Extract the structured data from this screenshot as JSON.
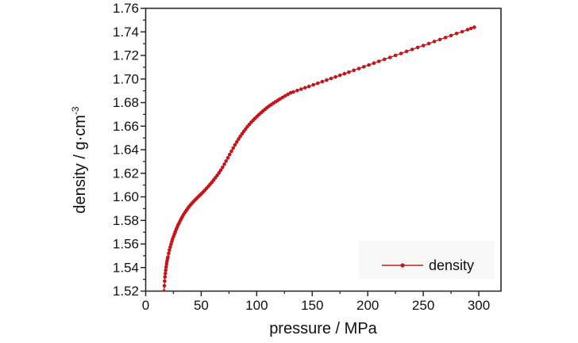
{
  "figure": {
    "background_color": "#ffffff",
    "axis_color": "#2a2a2a",
    "text_color": "#111111"
  },
  "chart_data": {
    "type": "scatter",
    "title": "",
    "xlabel": "pressure / MPa",
    "ylabel": "density / g·cm⁻³",
    "ylabel_base": "density / g·cm",
    "ylabel_sup": "-3",
    "xlim": [
      0,
      320
    ],
    "ylim": [
      1.52,
      1.76
    ],
    "grid": false,
    "x_major_ticks": [
      0,
      50,
      100,
      150,
      200,
      250,
      300
    ],
    "x_tick_labels": [
      "0",
      "50",
      "100",
      "150",
      "200",
      "250",
      "300"
    ],
    "x_minor_ticks": [
      25,
      75,
      125,
      175,
      225,
      275
    ],
    "y_major_ticks": [
      1.52,
      1.54,
      1.56,
      1.58,
      1.6,
      1.62,
      1.64,
      1.66,
      1.68,
      1.7,
      1.72,
      1.74,
      1.76
    ],
    "y_tick_labels": [
      "1.52",
      "1.54",
      "1.56",
      "1.58",
      "1.60",
      "1.62",
      "1.64",
      "1.66",
      "1.68",
      "1.70",
      "1.72",
      "1.74",
      "1.76"
    ],
    "y_minor_ticks": [
      1.53,
      1.55,
      1.57,
      1.59,
      1.61,
      1.63,
      1.65,
      1.67,
      1.69,
      1.71,
      1.73,
      1.75
    ],
    "legend": {
      "label": "density",
      "position": "lower right",
      "background_color": "#f8f8f8"
    },
    "series": [
      {
        "name": "density",
        "style": "line+marker",
        "marker": "filled-circle",
        "marker_color": "#c1161b",
        "line_color": "#b32420",
        "points": [
          [
            16.5,
            1.52
          ],
          [
            16.8,
            1.5245
          ],
          [
            17.1,
            1.5285
          ],
          [
            17.4,
            1.532
          ],
          [
            17.7,
            1.535
          ],
          [
            18.0,
            1.5378
          ],
          [
            18.4,
            1.5405
          ],
          [
            18.8,
            1.543
          ],
          [
            19.2,
            1.5452
          ],
          [
            19.6,
            1.5472
          ],
          [
            20.0,
            1.549
          ],
          [
            20.7,
            1.552
          ],
          [
            21.4,
            1.5548
          ],
          [
            22.1,
            1.5573
          ],
          [
            22.8,
            1.5597
          ],
          [
            23.5,
            1.562
          ],
          [
            24.2,
            1.5641
          ],
          [
            25.0,
            1.5662
          ],
          [
            25.8,
            1.5683
          ],
          [
            26.6,
            1.5703
          ],
          [
            27.4,
            1.5722
          ],
          [
            28.2,
            1.574
          ],
          [
            29.1,
            1.5759
          ],
          [
            30.0,
            1.5777
          ],
          [
            31.0,
            1.5796
          ],
          [
            32.0,
            1.5814
          ],
          [
            33.0,
            1.5831
          ],
          [
            34.2,
            1.585
          ],
          [
            35.4,
            1.5868
          ],
          [
            36.6,
            1.5885
          ],
          [
            37.8,
            1.5901
          ],
          [
            39.0,
            1.5916
          ],
          [
            40.3,
            1.5931
          ],
          [
            41.6,
            1.5945
          ],
          [
            43.0,
            1.5959
          ],
          [
            44.4,
            1.5973
          ],
          [
            45.8,
            1.5986
          ],
          [
            47.2,
            1.5999
          ],
          [
            48.6,
            1.6012
          ],
          [
            50.0,
            1.6025
          ],
          [
            51.6,
            1.604
          ],
          [
            53.2,
            1.6056
          ],
          [
            54.8,
            1.6072
          ],
          [
            56.4,
            1.6089
          ],
          [
            58.0,
            1.6106
          ],
          [
            59.6,
            1.6124
          ],
          [
            61.2,
            1.6143
          ],
          [
            62.8,
            1.6162
          ],
          [
            64.4,
            1.6182
          ],
          [
            66.0,
            1.6203
          ],
          [
            67.6,
            1.6226
          ],
          [
            69.2,
            1.625
          ],
          [
            70.8,
            1.6276
          ],
          [
            72.4,
            1.6303
          ],
          [
            74.0,
            1.6331
          ],
          [
            75.6,
            1.6359
          ],
          [
            77.2,
            1.6387
          ],
          [
            78.8,
            1.6414
          ],
          [
            80.4,
            1.6441
          ],
          [
            82.0,
            1.6466
          ],
          [
            83.6,
            1.649
          ],
          [
            85.2,
            1.6513
          ],
          [
            86.8,
            1.6535
          ],
          [
            88.4,
            1.6556
          ],
          [
            90.0,
            1.6576
          ],
          [
            91.7,
            1.6596
          ],
          [
            93.4,
            1.6615
          ],
          [
            95.1,
            1.6633
          ],
          [
            96.8,
            1.665
          ],
          [
            98.5,
            1.6666
          ],
          [
            100.2,
            1.6682
          ],
          [
            102.0,
            1.6698
          ],
          [
            103.8,
            1.6713
          ],
          [
            105.6,
            1.6728
          ],
          [
            107.4,
            1.6742
          ],
          [
            109.2,
            1.6756
          ],
          [
            111.0,
            1.6769
          ],
          [
            113.0,
            1.6782
          ],
          [
            115.0,
            1.6795
          ],
          [
            117.0,
            1.6807
          ],
          [
            119.0,
            1.6819
          ],
          [
            121.0,
            1.6831
          ],
          [
            123.3,
            1.6844
          ],
          [
            125.6,
            1.6857
          ],
          [
            128.0,
            1.687
          ],
          [
            130.5,
            1.6883
          ],
          [
            133.0,
            1.689
          ],
          [
            136.5,
            1.6902
          ],
          [
            140.0,
            1.6914
          ],
          [
            143.5,
            1.6926
          ],
          [
            147.0,
            1.6937
          ],
          [
            151.0,
            1.6951
          ],
          [
            155.0,
            1.6964
          ],
          [
            159.0,
            1.6978
          ],
          [
            163.0,
            1.6991
          ],
          [
            167.0,
            1.7005
          ],
          [
            171.0,
            1.7018
          ],
          [
            175.0,
            1.7032
          ],
          [
            179.0,
            1.7045
          ],
          [
            183.0,
            1.7059
          ],
          [
            187.5,
            1.7074
          ],
          [
            192.0,
            1.7089
          ],
          [
            196.5,
            1.7104
          ],
          [
            201.0,
            1.7119
          ],
          [
            205.5,
            1.7135
          ],
          [
            210.0,
            1.715
          ],
          [
            215.0,
            1.7167
          ],
          [
            220.0,
            1.7183
          ],
          [
            225.0,
            1.72
          ],
          [
            230.0,
            1.7217
          ],
          [
            235.0,
            1.7234
          ],
          [
            240.0,
            1.7251
          ],
          [
            245.0,
            1.7268
          ],
          [
            250.0,
            1.7284
          ],
          [
            255.0,
            1.7301
          ],
          [
            260.0,
            1.7318
          ],
          [
            265.0,
            1.7335
          ],
          [
            270.0,
            1.7352
          ],
          [
            275.0,
            1.7369
          ],
          [
            280.0,
            1.7386
          ],
          [
            285.0,
            1.7402
          ],
          [
            290.0,
            1.7419
          ],
          [
            293.0,
            1.7429
          ],
          [
            296.0,
            1.7439
          ]
        ]
      }
    ]
  }
}
